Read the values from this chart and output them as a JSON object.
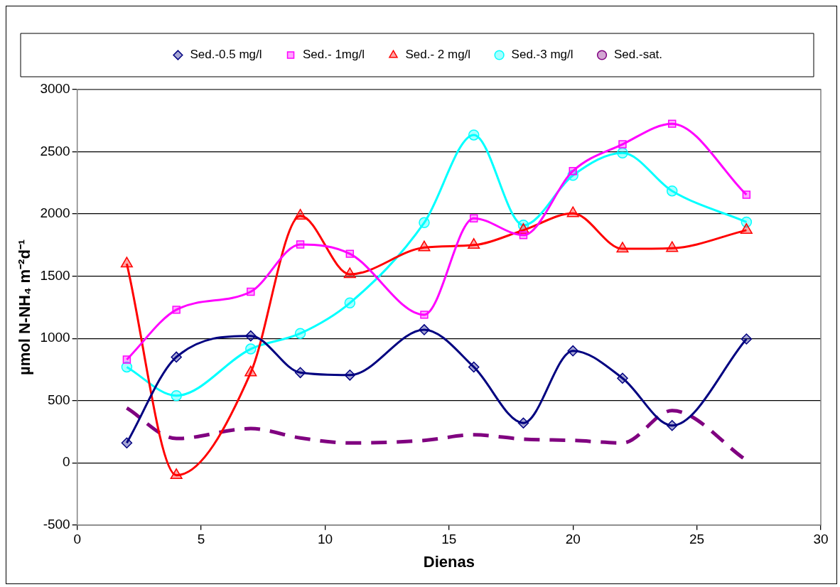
{
  "chart_data": {
    "type": "line",
    "xlabel": "Dienas",
    "ylabel": "µmol N-NH₄ m⁻²d⁻¹",
    "x": [
      2,
      4,
      7,
      9,
      11,
      14,
      16,
      18,
      20,
      22,
      24,
      27
    ],
    "series": [
      {
        "name": "Sed.-0.5 mg/l",
        "color": "#000080",
        "marker": "diamond",
        "values": [
          160,
          850,
          1020,
          725,
          705,
          1070,
          770,
          320,
          900,
          680,
          300,
          995
        ]
      },
      {
        "name": "Sed.- 1mg/l",
        "color": "#ff00ff",
        "marker": "square",
        "values": [
          830,
          1230,
          1375,
          1755,
          1680,
          1190,
          1965,
          1830,
          2345,
          2560,
          2725,
          2155
        ]
      },
      {
        "name": "Sed.- 2 mg/l",
        "color": "#ff0000",
        "marker": "triangle",
        "values": [
          1600,
          -100,
          725,
          1985,
          1515,
          1730,
          1750,
          1870,
          2005,
          1720,
          1725,
          1870
        ]
      },
      {
        "name": "Sed.-3 mg/l",
        "color": "#00ffff",
        "marker": "circle",
        "values": [
          770,
          540,
          915,
          1040,
          1285,
          1930,
          2635,
          1910,
          2310,
          2490,
          2185,
          1935
        ]
      },
      {
        "name": "Sed.-sat.",
        "color": "#800080",
        "marker": "none",
        "line_style": "dashed",
        "values": [
          440,
          195,
          275,
          200,
          160,
          180,
          225,
          190,
          180,
          160,
          420,
          20
        ]
      }
    ],
    "xlim": [
      0,
      30
    ],
    "xticks": [
      0,
      5,
      10,
      15,
      20,
      25,
      30
    ],
    "ylim": [
      -500,
      3000
    ],
    "yticks": [
      -500,
      0,
      500,
      1000,
      1500,
      2000,
      2500,
      3000
    ],
    "grid": "y",
    "legend": "top"
  }
}
